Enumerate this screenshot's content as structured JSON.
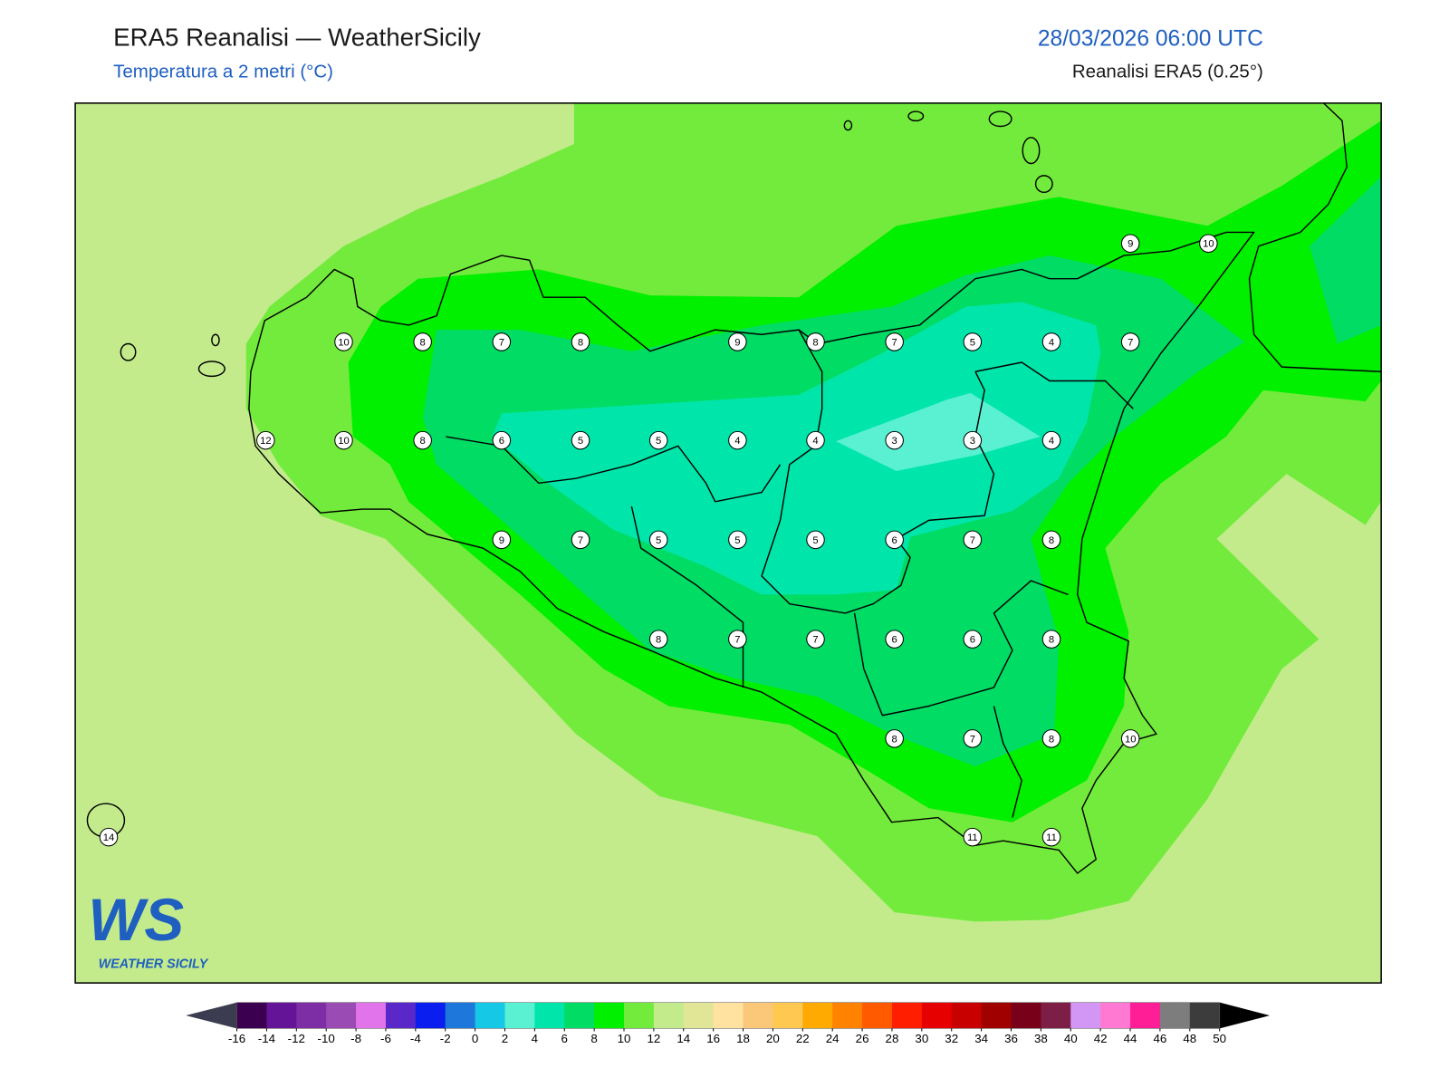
{
  "header": {
    "title": "ERA5 Reanalisi — WeatherSicily",
    "subtitle": "Temperatura a 2 metri (°C)",
    "datetime": "28/03/2026 06:00 UTC",
    "source": "Reanalisi ERA5 (0.25°)"
  },
  "stations": [
    9,
    10,
    10,
    8,
    7,
    8,
    9,
    8,
    7,
    5,
    4,
    7,
    12,
    10,
    8,
    6,
    5,
    5,
    4,
    4,
    3,
    3,
    4,
    9,
    7,
    5,
    5,
    5,
    6,
    7,
    8,
    8,
    7,
    7,
    6,
    6,
    8,
    8,
    7,
    8,
    10,
    14,
    11,
    11
  ],
  "colorbar": {
    "ticks": [
      -16,
      -14,
      -12,
      -10,
      -8,
      -6,
      -4,
      -2,
      0,
      2,
      4,
      6,
      8,
      10,
      12,
      14,
      16,
      18,
      20,
      22,
      24,
      26,
      28,
      30,
      32,
      34,
      36,
      38,
      40,
      42,
      44,
      46,
      48,
      50
    ],
    "colors": [
      "#3c0050",
      "#641496",
      "#7d2ea5",
      "#9b4bb4",
      "#e173eb",
      "#5a28c8",
      "#0a1ef0",
      "#1e78dc",
      "#14c8e6",
      "#5af0d2",
      "#00e6aa",
      "#00dc64",
      "#00f000",
      "#73eb3c",
      "#c3eb8c",
      "#e1e696",
      "#ffe1a0",
      "#fac878",
      "#ffc850",
      "#ffaa00",
      "#ff8200",
      "#ff5a00",
      "#ff1e00",
      "#e60000",
      "#c80000",
      "#a00000",
      "#780019",
      "#7d1e46",
      "#d296f5",
      "#ff78d2",
      "#ff1e96",
      "#7d7d7d",
      "#3c3c3c"
    ],
    "under_color": "#3c3c50",
    "over_color": "#000000"
  },
  "logo": {
    "mark": "WS",
    "name": "WEATHER SICILY"
  }
}
